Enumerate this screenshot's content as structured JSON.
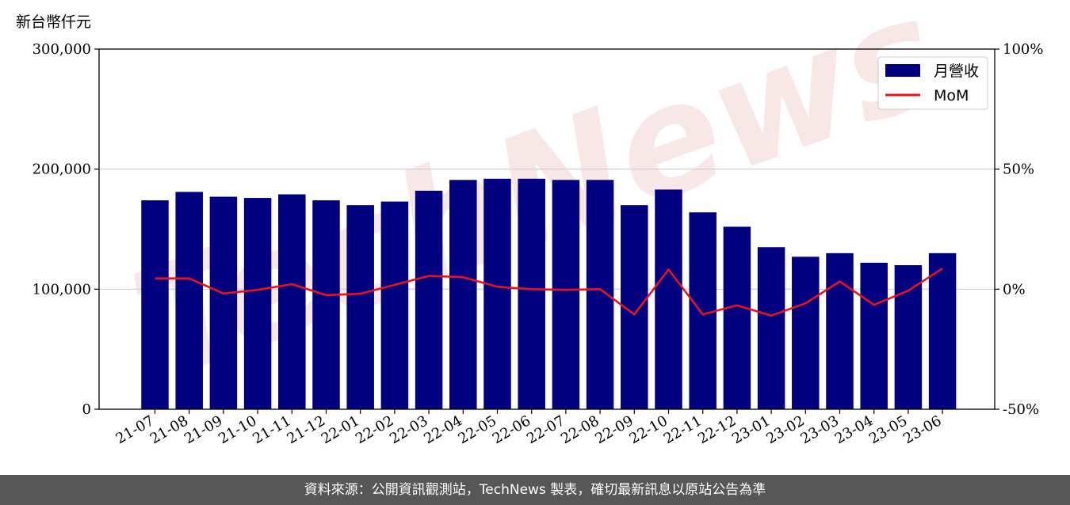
{
  "chart_data": {
    "type": "bar",
    "unit_label": "新台幣仟元",
    "categories": [
      "21-07",
      "21-08",
      "21-09",
      "21-10",
      "21-11",
      "21-12",
      "22-01",
      "22-02",
      "22-03",
      "22-04",
      "22-05",
      "22-06",
      "22-07",
      "22-08",
      "22-09",
      "22-10",
      "22-11",
      "22-12",
      "23-01",
      "23-02",
      "23-03",
      "23-04",
      "23-05",
      "23-06"
    ],
    "series": [
      {
        "name": "月營收",
        "type": "bar",
        "axis": "left",
        "color": "#000080",
        "values": [
          174000,
          181000,
          177000,
          176000,
          179000,
          174000,
          170000,
          173000,
          182000,
          191000,
          192000,
          192000,
          191000,
          191000,
          170000,
          183000,
          164000,
          152000,
          135000,
          127000,
          130000,
          122000,
          120000,
          130000
        ]
      },
      {
        "name": "MoM",
        "type": "line",
        "axis": "right",
        "color": "#e8131b",
        "values": [
          4.5,
          4.5,
          -1.8,
          -0.3,
          2.1,
          -2.5,
          -1.9,
          1.8,
          5.5,
          5.0,
          1.0,
          0.0,
          -0.3,
          0.0,
          -10.5,
          8.2,
          -10.5,
          -6.7,
          -11.0,
          -5.9,
          3.2,
          -6.5,
          -0.6,
          8.6
        ]
      }
    ],
    "y_left": {
      "ticks": [
        "0",
        "100,000",
        "200,000",
        "300,000"
      ],
      "ylim": [
        0,
        300000
      ]
    },
    "y_right": {
      "ticks": [
        "-50%",
        "0%",
        "50%",
        "100%"
      ],
      "ylim": [
        -50,
        100
      ]
    },
    "grid": "horizontal at major ticks",
    "legend": "top-right",
    "watermark": "TechNews"
  },
  "footer": {
    "text": "資料來源：公開資訊觀測站，TechNews 製表，確切最新訊息以原站公告為準"
  }
}
